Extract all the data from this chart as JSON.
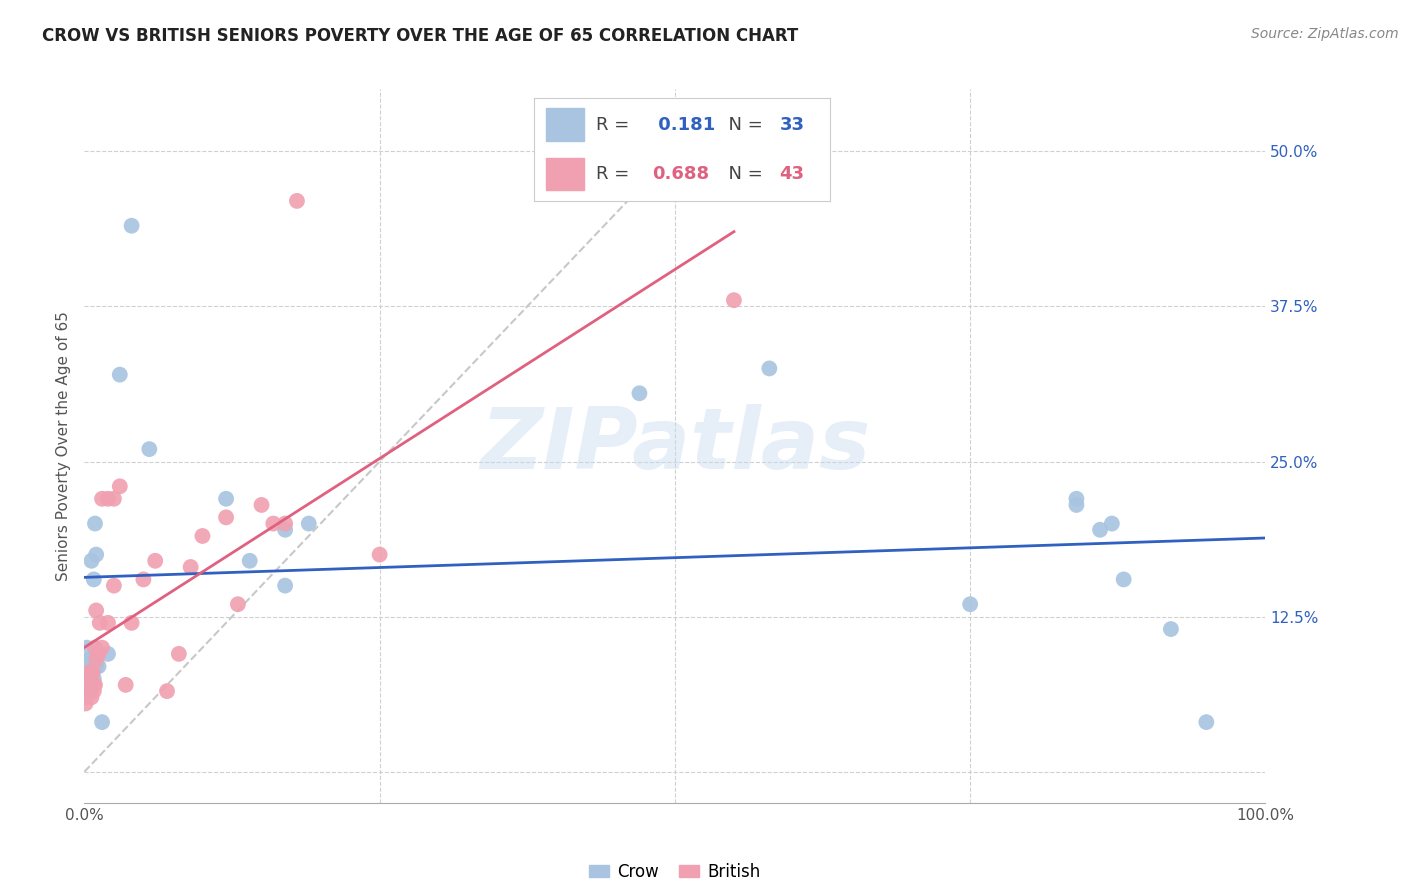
{
  "title": "CROW VS BRITISH SENIORS POVERTY OVER THE AGE OF 65 CORRELATION CHART",
  "source": "Source: ZipAtlas.com",
  "ylabel": "Seniors Poverty Over the Age of 65",
  "crow_R": 0.181,
  "crow_N": 33,
  "british_R": 0.688,
  "british_N": 43,
  "crow_color": "#a8c4e0",
  "british_color": "#f0a0b0",
  "crow_line_color": "#3060c0",
  "british_line_color": "#e06080",
  "diagonal_color": "#c8c8c8",
  "background_color": "#ffffff",
  "watermark": "ZIPatlas",
  "crow_x": [
    0.2,
    0.2,
    0.4,
    0.5,
    0.5,
    0.6,
    0.6,
    0.8,
    0.8,
    0.9,
    1.0,
    1.0,
    1.2,
    1.5,
    2.0,
    3.0,
    4.0,
    5.5,
    12.0,
    14.0,
    17.0,
    17.0,
    19.0,
    47.0,
    58.0,
    75.0,
    84.0,
    84.0,
    86.0,
    87.0,
    88.0,
    92.0,
    95.0
  ],
  "crow_y": [
    8.0,
    10.0,
    9.0,
    6.5,
    9.0,
    9.0,
    17.0,
    7.5,
    15.5,
    20.0,
    8.5,
    17.5,
    8.5,
    4.0,
    9.5,
    32.0,
    44.0,
    26.0,
    22.0,
    17.0,
    15.0,
    19.5,
    20.0,
    30.5,
    32.5,
    13.5,
    21.5,
    22.0,
    19.5,
    20.0,
    15.5,
    11.5,
    4.0
  ],
  "british_x": [
    0.1,
    0.2,
    0.3,
    0.3,
    0.4,
    0.4,
    0.5,
    0.5,
    0.6,
    0.6,
    0.7,
    0.7,
    0.8,
    0.8,
    0.9,
    0.9,
    1.0,
    1.0,
    1.2,
    1.3,
    1.5,
    1.5,
    2.0,
    2.0,
    2.5,
    2.5,
    3.0,
    3.5,
    4.0,
    5.0,
    6.0,
    7.0,
    8.0,
    9.0,
    10.0,
    12.0,
    13.0,
    15.0,
    16.0,
    17.0,
    18.0,
    25.0,
    55.0
  ],
  "british_y": [
    5.5,
    6.0,
    7.0,
    6.5,
    8.0,
    7.5,
    7.5,
    7.0,
    6.0,
    8.0,
    7.0,
    8.0,
    7.0,
    6.5,
    7.0,
    10.0,
    9.0,
    13.0,
    9.5,
    12.0,
    10.0,
    22.0,
    12.0,
    22.0,
    15.0,
    22.0,
    23.0,
    7.0,
    12.0,
    15.5,
    17.0,
    6.5,
    9.5,
    16.5,
    19.0,
    20.5,
    13.5,
    21.5,
    20.0,
    20.0,
    46.0,
    17.5,
    38.0
  ]
}
